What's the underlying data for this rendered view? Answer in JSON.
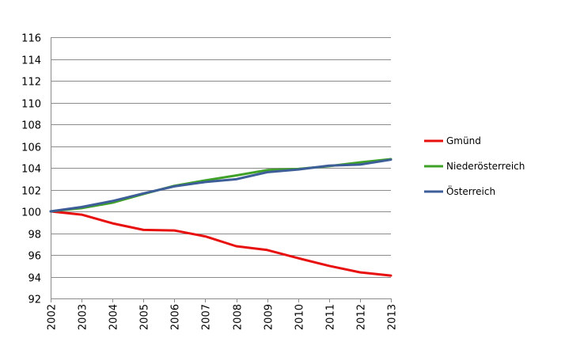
{
  "chart_data": {
    "type": "line",
    "title": "",
    "xlabel": "",
    "ylabel": "",
    "x": [
      "2002",
      "2003",
      "2004",
      "2005",
      "2006",
      "2007",
      "2008",
      "2009",
      "2010",
      "2011",
      "2012",
      "2013"
    ],
    "ylim": [
      92,
      116
    ],
    "y_ticks": [
      92,
      94,
      96,
      98,
      100,
      102,
      104,
      106,
      108,
      110,
      112,
      114,
      116
    ],
    "grid": true,
    "legend_position": "right",
    "series": [
      {
        "name": "Gmünd",
        "color": "#e8100f",
        "values": [
          100.0,
          99.7,
          98.9,
          98.3,
          98.25,
          97.7,
          96.8,
          96.45,
          95.7,
          95.0,
          94.4,
          94.1
        ]
      },
      {
        "name": "Niederösterreich",
        "color": "#3fa127",
        "values": [
          100.0,
          100.3,
          100.8,
          101.6,
          102.35,
          102.85,
          103.3,
          103.8,
          103.9,
          104.15,
          104.5,
          104.8
        ]
      },
      {
        "name": "Österreich",
        "color": "#3e5e99",
        "values": [
          100.0,
          100.4,
          100.95,
          101.65,
          102.3,
          102.7,
          102.95,
          103.6,
          103.85,
          104.2,
          104.3,
          104.75
        ]
      }
    ]
  }
}
